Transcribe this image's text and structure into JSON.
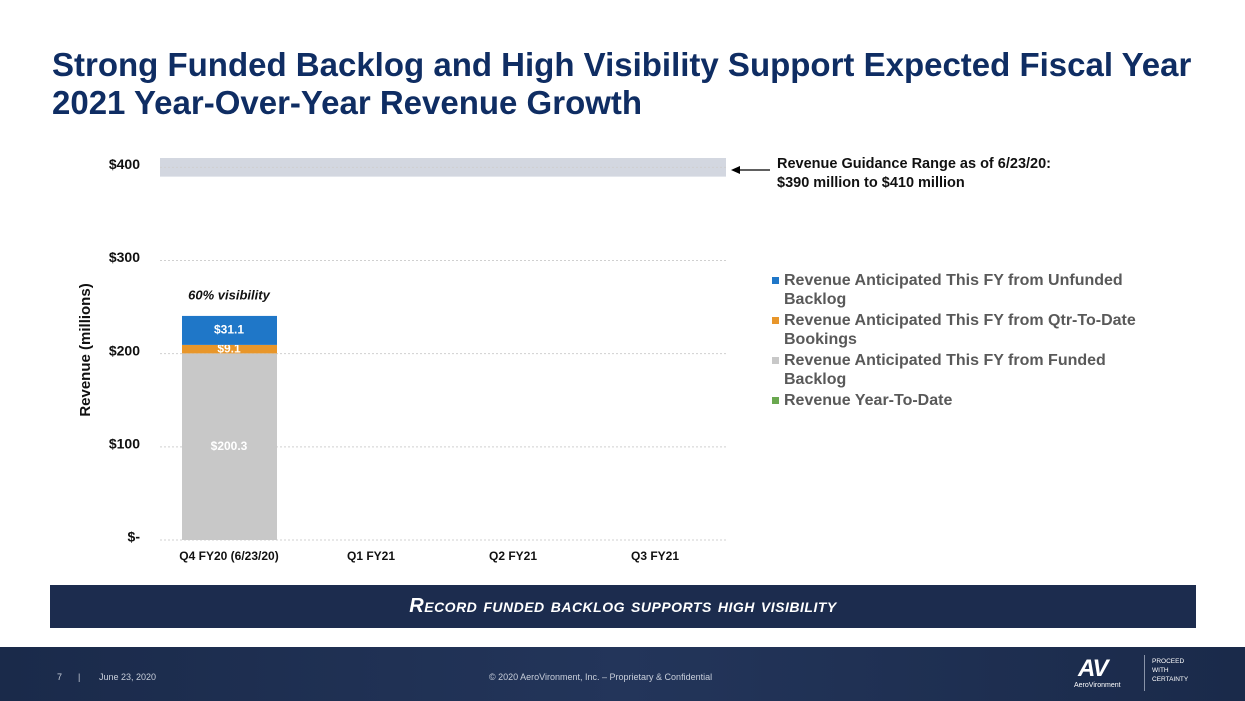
{
  "title": "Strong Funded Backlog and High Visibility Support Expected Fiscal Year 2021 Year-Over-Year Revenue Growth",
  "chart_data": {
    "type": "bar",
    "stacked": true,
    "y_label": "Revenue (millions)",
    "categories": [
      "Q4 FY20 (6/23/20)",
      "Q1 FY21",
      "Q2 FY21",
      "Q3 FY21"
    ],
    "series": [
      {
        "name": "Revenue Anticipated This FY from Unfunded Backlog",
        "color": "#1f77c8",
        "values": [
          31.1,
          null,
          null,
          null
        ],
        "value_labels": [
          "$31.1",
          null,
          null,
          null
        ]
      },
      {
        "name": "Revenue Anticipated This FY from Qtr-To-Date Bookings",
        "color": "#e8962a",
        "values": [
          9.1,
          null,
          null,
          null
        ],
        "value_labels": [
          "$9.1",
          null,
          null,
          null
        ]
      },
      {
        "name": "Revenue Anticipated This FY from Funded Backlog",
        "color": "#c8c8c8",
        "values": [
          200.3,
          null,
          null,
          null
        ],
        "value_labels": [
          "$200.3",
          null,
          null,
          null
        ]
      },
      {
        "name": "Revenue Year-To-Date",
        "color": "#6aa84f",
        "values": [
          null,
          null,
          null,
          null
        ],
        "value_labels": [
          null,
          null,
          null,
          null
        ]
      }
    ],
    "ylim": [
      0,
      410
    ],
    "yticks": [
      {
        "value": 0,
        "label": "$-"
      },
      {
        "value": 100,
        "label": "$100"
      },
      {
        "value": 200,
        "label": "$200"
      },
      {
        "value": 300,
        "label": "$300"
      },
      {
        "value": 400,
        "label": "$400"
      }
    ],
    "grid": true,
    "guidance_range": [
      390,
      410
    ],
    "guidance_color": "#d3d7e0",
    "guidance_note": [
      "Revenue Guidance Range as of 6/23/20:",
      "$390 million to $410 million"
    ],
    "bar_note": "60% visibility"
  },
  "banner": "Record funded backlog supports high visibility",
  "footer": {
    "page": "7",
    "separator": "|",
    "date": "June 23, 2020",
    "copyright": "© 2020 AeroVironment, Inc. – Proprietary & Confidential",
    "logo": "AV",
    "company": "AeroVironment",
    "tagline": [
      "PROCEED",
      "WITH",
      "CERTAINTY"
    ]
  }
}
